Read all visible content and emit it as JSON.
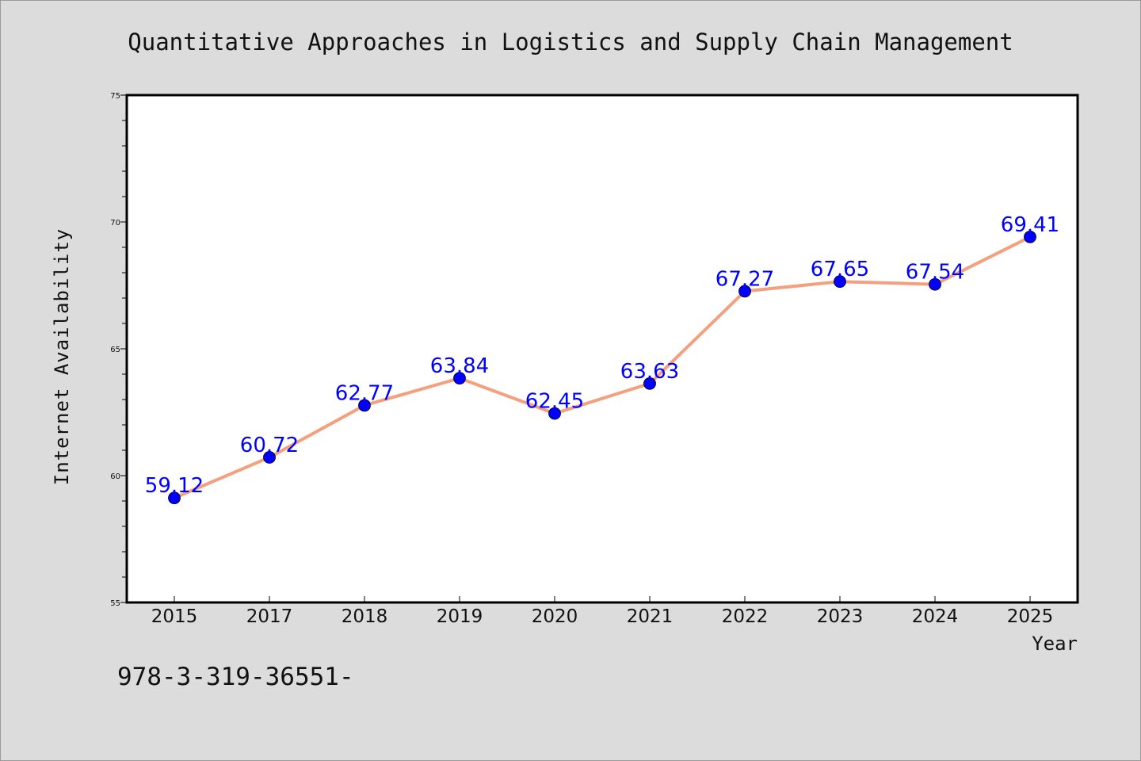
{
  "chart_data": {
    "type": "line",
    "title": "Quantitative Approaches in Logistics and Supply Chain Management",
    "xlabel": "Year",
    "ylabel": "Internet Availability",
    "categories": [
      "2015",
      "2017",
      "2018",
      "2019",
      "2020",
      "2021",
      "2022",
      "2023",
      "2024",
      "2025"
    ],
    "series": [
      {
        "values": [
          59.12,
          60.72,
          62.77,
          63.84,
          62.45,
          63.63,
          67.27,
          67.65,
          67.54,
          69.41
        ],
        "labels": [
          "59.12",
          "60.72",
          "62.77",
          "63.84",
          "62.45",
          "63.63",
          "67.27",
          "67.65",
          "67.54",
          "69.41"
        ],
        "line_color": "#f4a07e",
        "marker_color": "#0000ff"
      }
    ],
    "ylim": [
      55,
      75
    ],
    "yticks": [
      "55",
      "60",
      "65",
      "70",
      "75"
    ],
    "grid": false,
    "legend": "none"
  },
  "footer_text": "978-3-319-36551-",
  "colors": {
    "background": "#dcdcdc",
    "plot_background": "#ffffff",
    "line": "#f4a07e",
    "marker": "#0000ff",
    "data_label": "#0000ff"
  }
}
